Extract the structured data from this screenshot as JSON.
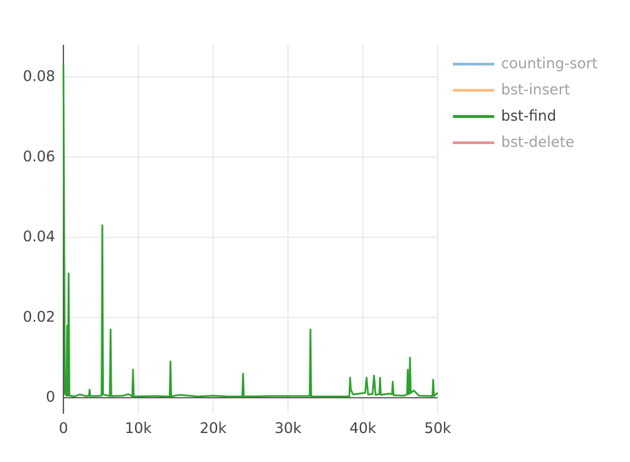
{
  "chart_data": {
    "type": "line",
    "xlim": [
      0,
      50000
    ],
    "xticks": [
      {
        "value": 0,
        "label": "0"
      },
      {
        "value": 10000,
        "label": "10k"
      },
      {
        "value": 20000,
        "label": "20k"
      },
      {
        "value": 30000,
        "label": "30k"
      },
      {
        "value": 40000,
        "label": "40k"
      },
      {
        "value": 50000,
        "label": "50k"
      }
    ],
    "ylim": [
      -0.004,
      0.088
    ],
    "yticks": [
      0,
      0.02,
      0.04,
      0.06,
      0.08
    ],
    "grid": true,
    "legend": "right",
    "series": [
      {
        "name": "counting-sort",
        "color": "#1f77b4",
        "visible": false
      },
      {
        "name": "bst-insert",
        "color": "#ff7f0e",
        "visible": false
      },
      {
        "name": "bst-find",
        "color": "#2ca02c",
        "visible": true,
        "x": [
          0,
          200,
          400,
          500,
          600,
          700,
          800,
          1500,
          2200,
          3000,
          3400,
          3500,
          3600,
          4500,
          5100,
          5200,
          5300,
          6200,
          6300,
          6400,
          8000,
          8700,
          9200,
          9300,
          9400,
          12000,
          14200,
          14300,
          14400,
          15500,
          18000,
          20000,
          22000,
          23900,
          24000,
          24100,
          28000,
          32900,
          33000,
          33100,
          36000,
          38200,
          38300,
          38400,
          38700,
          39500,
          40300,
          40500,
          40700,
          41300,
          41500,
          41700,
          42200,
          42300,
          42400,
          43500,
          43900,
          44000,
          44100,
          45500,
          45900,
          46000,
          46100,
          46200,
          46300,
          46400,
          46800,
          47500,
          49300,
          49400,
          49500,
          50000
        ],
        "values": [
          0.083,
          0.001,
          0.0005,
          0.018,
          0.0005,
          0.031,
          0.0005,
          0.0003,
          0.0008,
          0.0004,
          0.0004,
          0.002,
          0.0004,
          0.0004,
          0.0005,
          0.043,
          0.0008,
          0.0004,
          0.017,
          0.0004,
          0.0005,
          0.0009,
          0.0003,
          0.007,
          0.0003,
          0.0004,
          0.0003,
          0.009,
          0.0003,
          0.0007,
          0.0003,
          0.0005,
          0.0003,
          0.0003,
          0.006,
          0.0003,
          0.0004,
          0.0004,
          0.017,
          0.0003,
          0.0003,
          0.0003,
          0.005,
          0.002,
          0.0008,
          0.001,
          0.0012,
          0.005,
          0.0008,
          0.0009,
          0.0055,
          0.0007,
          0.0009,
          0.005,
          0.0007,
          0.001,
          0.0009,
          0.004,
          0.0006,
          0.0005,
          0.0008,
          0.007,
          0.001,
          0.0009,
          0.01,
          0.0012,
          0.0018,
          0.0005,
          0.0004,
          0.0045,
          0.0004,
          0.0012
        ]
      },
      {
        "name": "bst-delete",
        "color": "#d62728",
        "visible": false
      }
    ]
  }
}
